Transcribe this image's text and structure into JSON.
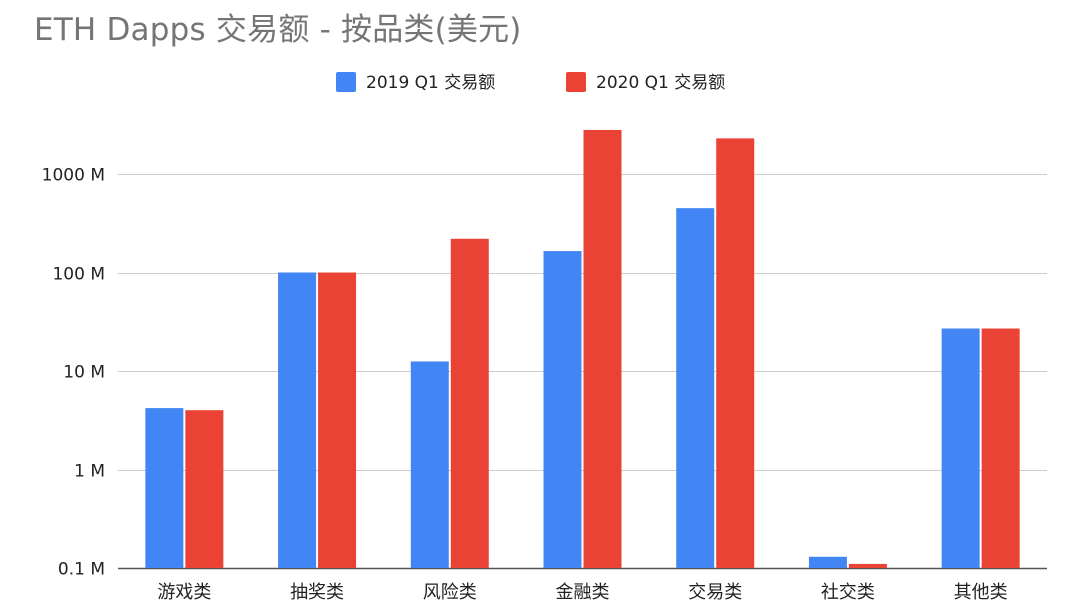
{
  "chart_data": {
    "type": "bar",
    "title": "ETH Dapps 交易额 - 按品类(美元)",
    "xlabel": "",
    "ylabel": "",
    "y_scale": "log",
    "ylim": [
      0.1,
      3000
    ],
    "y_unit": "M",
    "y_ticks": [
      {
        "value": 0.1,
        "label": "0.1 M"
      },
      {
        "value": 1,
        "label": "1 M"
      },
      {
        "value": 10,
        "label": "10 M"
      },
      {
        "value": 100,
        "label": "100 M"
      },
      {
        "value": 1000,
        "label": "1000 M"
      }
    ],
    "categories": [
      "游戏类",
      "抽奖类",
      "风险类",
      "金融类",
      "交易类",
      "社交类",
      "其他类"
    ],
    "series": [
      {
        "name": "2019 Q1 交易额",
        "color": "#4285f4",
        "values": [
          4.2,
          100,
          12.5,
          165,
          450,
          0.13,
          27
        ]
      },
      {
        "name": "2020 Q1  交易额",
        "color": "#ea4335",
        "values": [
          4.0,
          100,
          220,
          2800,
          2300,
          0.11,
          27
        ]
      }
    ],
    "grid": true,
    "legend": "top-center"
  }
}
